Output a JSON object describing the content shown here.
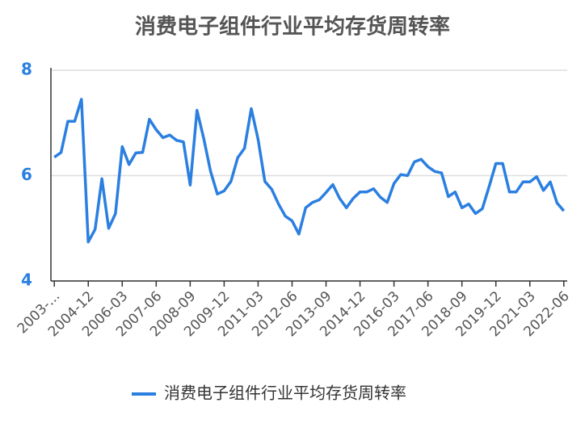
{
  "chart_data": {
    "type": "line",
    "title": "消费电子组件行业平均存货周转率",
    "categories": [
      "2003-...",
      null,
      null,
      null,
      null,
      "2004-12",
      null,
      null,
      null,
      null,
      "2006-03",
      null,
      null,
      null,
      null,
      "2007-06",
      null,
      null,
      null,
      null,
      "2008-09",
      null,
      null,
      null,
      null,
      "2009-12",
      null,
      null,
      null,
      null,
      "2011-03",
      null,
      null,
      null,
      null,
      "2012-06",
      null,
      null,
      null,
      null,
      "2013-09",
      null,
      null,
      null,
      null,
      "2014-12",
      null,
      null,
      null,
      null,
      "2016-03",
      null,
      null,
      null,
      null,
      "2017-06",
      null,
      null,
      null,
      null,
      "2018-09",
      null,
      null,
      null,
      null,
      "2019-12",
      null,
      null,
      null,
      null,
      "2021-03",
      null,
      null,
      null,
      null,
      "2022-06"
    ],
    "series": [
      {
        "name": "消费电子组件行业平均存货周转率",
        "color": "#2a7fe0",
        "values": [
          6.35,
          6.44,
          7.03,
          7.03,
          7.45,
          4.74,
          4.98,
          5.94,
          5.0,
          5.28,
          6.55,
          6.21,
          6.43,
          6.44,
          7.07,
          6.87,
          6.72,
          6.77,
          6.67,
          6.64,
          5.82,
          7.24,
          6.7,
          6.08,
          5.65,
          5.71,
          5.89,
          6.34,
          6.52,
          7.27,
          6.69,
          5.89,
          5.74,
          5.46,
          5.23,
          5.14,
          4.89,
          5.39,
          5.49,
          5.54,
          5.68,
          5.83,
          5.57,
          5.39,
          5.57,
          5.69,
          5.69,
          5.75,
          5.59,
          5.49,
          5.85,
          6.02,
          6.0,
          6.26,
          6.31,
          6.17,
          6.08,
          6.05,
          5.6,
          5.69,
          5.39,
          5.46,
          5.28,
          5.37,
          5.79,
          6.23,
          6.23,
          5.69,
          5.69,
          5.88,
          5.88,
          5.98,
          5.72,
          5.88,
          5.48,
          5.33
        ]
      }
    ],
    "ylim": [
      4,
      8
    ],
    "yticks": [
      4,
      6,
      8
    ],
    "grid": true,
    "legend": "bottom"
  }
}
